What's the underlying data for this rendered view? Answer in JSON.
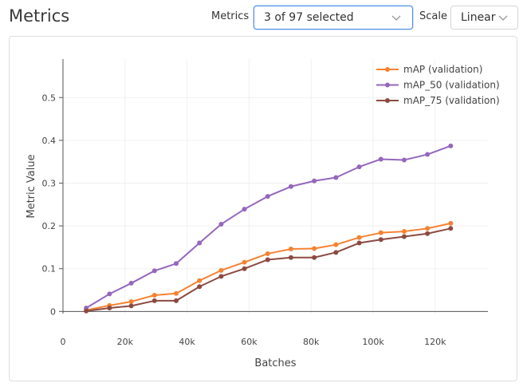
{
  "header": {
    "title": "Metrics",
    "metrics_label": "Metrics",
    "metrics_value": "3 of 97 selected",
    "scale_label": "Scale",
    "scale_value": "Linear"
  },
  "icons": {
    "dropdown": "chevron-down-icon"
  },
  "colors": {
    "mAP": "#f58231",
    "mAP_50": "#9467bd",
    "mAP_75": "#8c4a42",
    "focus": "#4a90e2"
  },
  "chart_data": {
    "type": "line",
    "xlabel": "Batches",
    "ylabel": "Metric Value",
    "xlim": [
      0,
      137000
    ],
    "ylim": [
      -0.005,
      0.59
    ],
    "x_ticks": [
      0,
      20000,
      40000,
      60000,
      80000,
      100000,
      120000
    ],
    "x_tick_labels": [
      "0",
      "20k",
      "40k",
      "60k",
      "80k",
      "100k",
      "120k"
    ],
    "y_ticks": [
      0,
      0.1,
      0.2,
      0.3,
      0.4,
      0.5
    ],
    "y_tick_labels": [
      "0",
      "0.1",
      "0.2",
      "0.3",
      "0.4",
      "0.5"
    ],
    "grid": true,
    "legend": "top-right",
    "x": [
      7500,
      15000,
      22000,
      29500,
      36500,
      44000,
      51000,
      58500,
      66000,
      73500,
      81000,
      88000,
      95500,
      102500,
      110000,
      117500,
      125000
    ],
    "series": [
      {
        "name": "mAP (validation)",
        "color": "#f58231",
        "values": [
          0.003,
          0.014,
          0.023,
          0.038,
          0.042,
          0.072,
          0.096,
          0.115,
          0.135,
          0.146,
          0.147,
          0.156,
          0.173,
          0.184,
          0.187,
          0.194,
          0.206
        ]
      },
      {
        "name": "mAP_50 (validation)",
        "color": "#9467bd",
        "values": [
          0.008,
          0.041,
          0.066,
          0.095,
          0.112,
          0.16,
          0.204,
          0.239,
          0.269,
          0.292,
          0.305,
          0.313,
          0.338,
          0.356,
          0.354,
          0.367,
          0.387
        ]
      },
      {
        "name": "mAP_75 (validation)",
        "color": "#8c4a42",
        "values": [
          0.001,
          0.008,
          0.013,
          0.025,
          0.025,
          0.058,
          0.082,
          0.1,
          0.121,
          0.126,
          0.126,
          0.138,
          0.16,
          0.168,
          0.175,
          0.182,
          0.194
        ]
      }
    ]
  }
}
